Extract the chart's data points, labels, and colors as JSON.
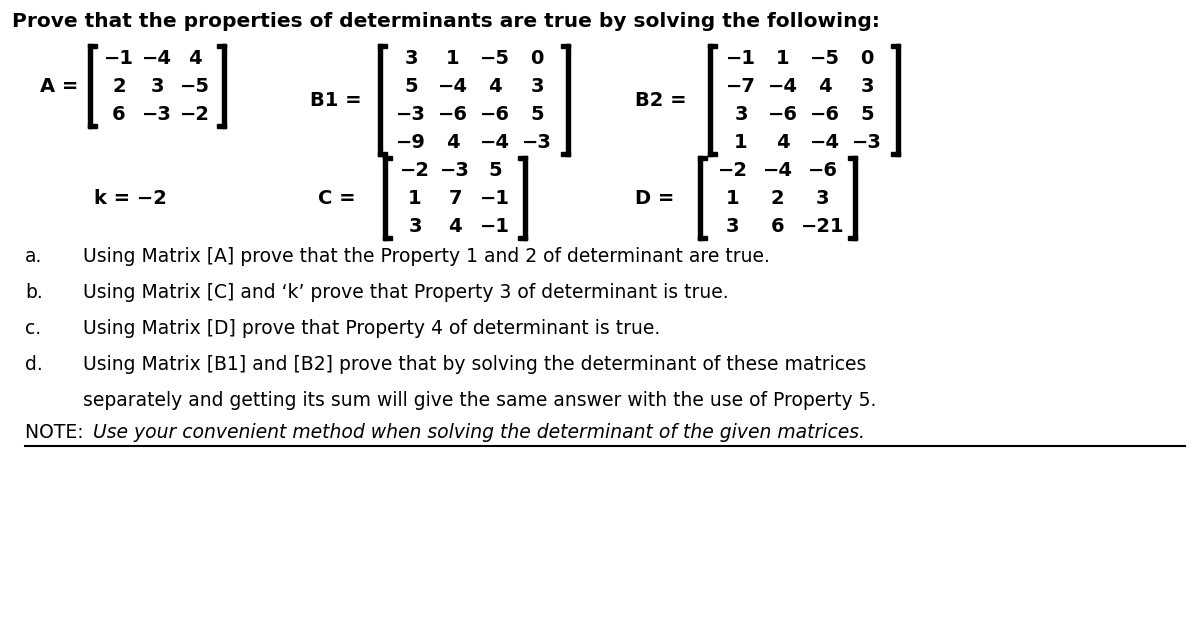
{
  "title": "Prove that the properties of determinants are true by solving the following:",
  "A": [
    [
      "−1",
      "−4",
      "4"
    ],
    [
      "2",
      "3",
      "−5"
    ],
    [
      "6",
      "−3",
      "−2"
    ]
  ],
  "B1": [
    [
      "3",
      "1",
      "−5",
      "0"
    ],
    [
      "5",
      "−4",
      "4",
      "3"
    ],
    [
      "−3",
      "−6",
      "−6",
      "5"
    ],
    [
      "−9",
      "4",
      "−4",
      "−3"
    ]
  ],
  "B2": [
    [
      "−1",
      "1",
      "−5",
      "0"
    ],
    [
      "−7",
      "−4",
      "4",
      "3"
    ],
    [
      "3",
      "−6",
      "−6",
      "5"
    ],
    [
      "1",
      "4",
      "−4",
      "−3"
    ]
  ],
  "k_str": "k = −2",
  "C": [
    [
      "−2",
      "−3",
      "5"
    ],
    [
      "1",
      "7",
      "−1"
    ],
    [
      "3",
      "4",
      "−1"
    ]
  ],
  "D": [
    [
      "−2",
      "−4",
      "−6"
    ],
    [
      "1",
      "2",
      "3"
    ],
    [
      "3",
      "6",
      "−21"
    ]
  ],
  "bg_color": "#ffffff",
  "text_color": "#000000",
  "font_size_title": 14.5,
  "font_size_matrix": 14,
  "font_size_label": 14,
  "font_size_body": 13.5,
  "lines_ab": [
    [
      "a.",
      "   Using Matrix [A] prove that the Property 1 and 2 of determinant are true."
    ],
    [
      "b.",
      "   Using Matrix [C] and ‘k’ prove that Property 3 of determinant is true."
    ],
    [
      "c.",
      "   Using Matrix [D] prove that Property 4 of determinant is true."
    ],
    [
      "d.",
      "   Using Matrix [B1] and [B2] prove that by solving the determinant of these matrices"
    ],
    [
      "",
      "   separately and getting its sum will give the same answer with the use of Property 5."
    ]
  ],
  "note_prefix": "NOTE: ",
  "note_italic": "Use your convenient method when solving the determinant of the given matrices."
}
